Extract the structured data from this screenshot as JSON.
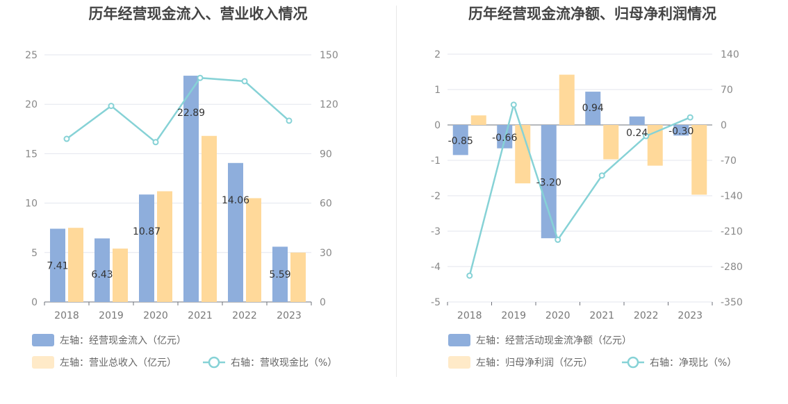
{
  "chart_data": [
    {
      "type": "bar",
      "title": "历年经营现金流入、营业收入情况",
      "categories": [
        "2018",
        "2019",
        "2020",
        "2021",
        "2022",
        "2023"
      ],
      "left_axis": {
        "min": 0,
        "max": 25,
        "ticks": [
          "0",
          "5",
          "10",
          "15",
          "20",
          "25"
        ]
      },
      "right_axis": {
        "min": 0,
        "max": 150,
        "ticks": [
          "0",
          "30",
          "60",
          "90",
          "120",
          "150"
        ]
      },
      "series": [
        {
          "name": "左轴：经营现金流入（亿元）",
          "type": "bar",
          "axis": "left",
          "color": "#8eaedc",
          "values": [
            7.41,
            6.43,
            10.87,
            22.89,
            14.06,
            5.59
          ],
          "labels": [
            "7.41",
            "6.43",
            "10.87",
            "22.89",
            "14.06",
            "5.59"
          ]
        },
        {
          "name": "左轴：营业总收入（亿元）",
          "type": "bar",
          "axis": "left",
          "color": "#ffd99a",
          "values": [
            7.5,
            5.4,
            11.2,
            16.8,
            10.5,
            5.0
          ]
        },
        {
          "name": "右轴：营收现金比（%）",
          "type": "line",
          "axis": "right",
          "color": "#86d2d6",
          "values": [
            99,
            119,
            97,
            136,
            134,
            110
          ]
        }
      ],
      "legend_position": "bottom-left"
    },
    {
      "type": "bar",
      "title": "历年经营现金流净额、归母净利润情况",
      "categories": [
        "2018",
        "2019",
        "2020",
        "2021",
        "2022",
        "2023"
      ],
      "left_axis": {
        "min": -5,
        "max": 2,
        "ticks": [
          "-5",
          "-4",
          "-3",
          "-2",
          "-1",
          "0",
          "1",
          "2"
        ]
      },
      "right_axis": {
        "min": -350,
        "max": 140,
        "ticks": [
          "-350",
          "-280",
          "-210",
          "-140",
          "-70",
          "0",
          "70",
          "140"
        ]
      },
      "series": [
        {
          "name": "左轴：经营活动现金流净额（亿元）",
          "type": "bar",
          "axis": "left",
          "color": "#8eaedc",
          "values": [
            -0.85,
            -0.66,
            -3.2,
            0.94,
            0.24,
            -0.3
          ],
          "labels": [
            "-0.85",
            "-0.66",
            "-3.20",
            "0.94",
            "0.24",
            "-0.30"
          ]
        },
        {
          "name": "左轴：归母净利润（亿元）",
          "type": "bar",
          "axis": "left",
          "color": "#ffd99a",
          "values": [
            0.27,
            -1.65,
            1.42,
            -0.97,
            -1.15,
            -1.97
          ]
        },
        {
          "name": "右轴：净现比（%）",
          "type": "line",
          "axis": "right",
          "color": "#86d2d6",
          "values": [
            -298,
            40,
            -227,
            -100,
            -22,
            15
          ]
        }
      ],
      "legend_position": "bottom-left"
    }
  ]
}
